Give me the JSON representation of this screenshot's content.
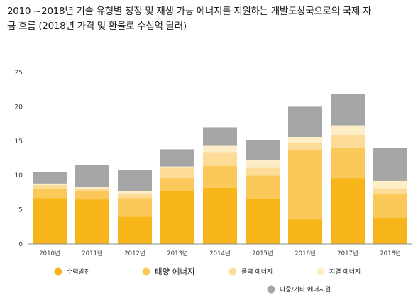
{
  "chart_data": {
    "type": "bar",
    "stacked": true,
    "title_line1": "2010 ~2018년 기술 유형별 청정 및 재생 가능 에너지를 지원하는 개발도상국으로의 국제 자",
    "title_line2": "금 흐름 (2018년 가격 및 환율로 수십억 달러)",
    "categories": [
      "2010년",
      "2011년",
      "2012년",
      "2013년",
      "2014년",
      "2015년",
      "2016년",
      "2017년",
      "2018년"
    ],
    "ylim": [
      0,
      25
    ],
    "yticks": [
      0,
      5,
      10,
      15,
      20,
      25
    ],
    "grid": false,
    "legend_position": "bottom",
    "series": [
      {
        "name": "수력발전",
        "color": "#f7b519",
        "values": [
          6.7,
          6.5,
          4.0,
          7.7,
          8.2,
          6.6,
          3.6,
          9.6,
          3.8
        ]
      },
      {
        "name": "태양 에너지",
        "color": "#fbc95a",
        "values": [
          1.3,
          1.2,
          2.7,
          1.9,
          3.2,
          3.4,
          10.1,
          4.4,
          3.5
        ]
      },
      {
        "name": "풍력 에너지",
        "color": "#fddc97",
        "values": [
          0.6,
          0.3,
          0.6,
          1.5,
          1.9,
          1.1,
          1.0,
          1.9,
          0.8
        ]
      },
      {
        "name": "지열 에너지",
        "color": "#feeec8",
        "values": [
          0.2,
          0.3,
          0.4,
          0.2,
          1.0,
          1.1,
          0.9,
          1.4,
          1.1
        ]
      },
      {
        "name": "다중/기타 에너지원",
        "color": "#a6a6a6",
        "values": [
          1.7,
          3.2,
          3.1,
          2.5,
          2.7,
          2.9,
          4.4,
          4.5,
          4.8
        ]
      }
    ]
  }
}
